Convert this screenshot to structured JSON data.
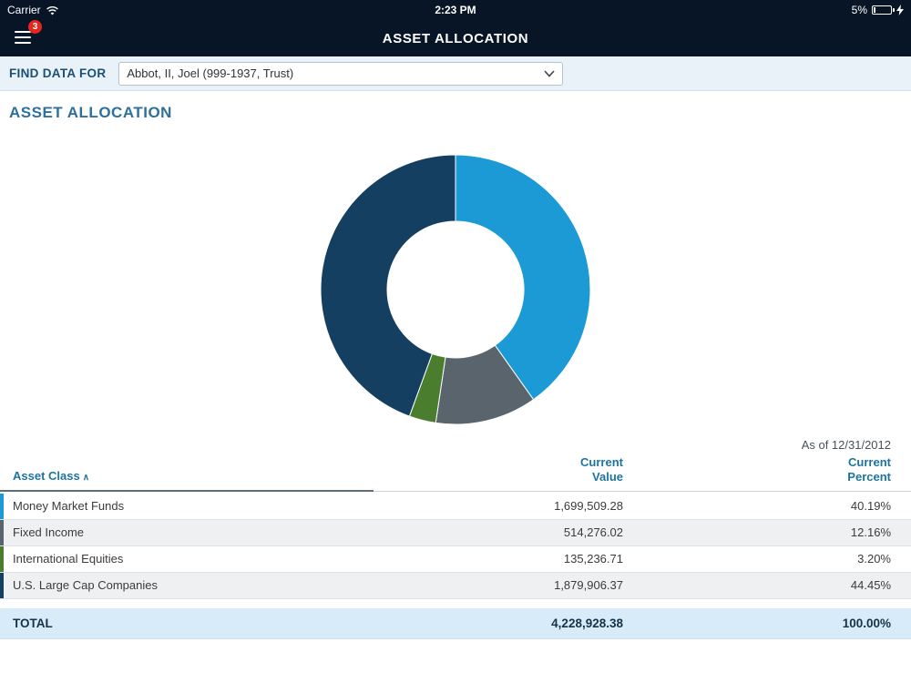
{
  "status_bar": {
    "carrier": "Carrier",
    "time": "2:23 PM",
    "battery_percent": "5%"
  },
  "nav": {
    "title": "ASSET ALLOCATION",
    "menu_badge": "3"
  },
  "find_data": {
    "label": "FIND DATA FOR",
    "selected": "Abbot, II, Joel (999-1937, Trust)"
  },
  "page": {
    "heading": "ASSET ALLOCATION",
    "as_of": "As of 12/31/2012"
  },
  "icons": {
    "sort_asc": "∧"
  },
  "chart_data": {
    "type": "pie",
    "donut": true,
    "title": "Asset Allocation",
    "start_angle_deg": 0,
    "slices": [
      {
        "label": "Money Market Funds",
        "value": 40.19,
        "color": "#1b9ad6"
      },
      {
        "label": "Fixed Income",
        "value": 12.16,
        "color": "#5a646c"
      },
      {
        "label": "International Equities",
        "value": 3.2,
        "color": "#4b7d2e"
      },
      {
        "label": "U.S. Large Cap Companies",
        "value": 44.45,
        "color": "#153f60"
      }
    ]
  },
  "table": {
    "headers": {
      "asset_class": "Asset Class",
      "current_value": [
        "Current",
        "Value"
      ],
      "current_percent": [
        "Current",
        "Percent"
      ]
    },
    "rows": [
      {
        "asset_class": "Money Market Funds",
        "value": "1,699,509.28",
        "percent": "40.19%",
        "color": "#1b9ad6"
      },
      {
        "asset_class": "Fixed Income",
        "value": "514,276.02",
        "percent": "12.16%",
        "color": "#5a646c"
      },
      {
        "asset_class": "International Equities",
        "value": "135,236.71",
        "percent": "3.20%",
        "color": "#4b7d2e"
      },
      {
        "asset_class": "U.S. Large Cap Companies",
        "value": "1,879,906.37",
        "percent": "44.45%",
        "color": "#153f60"
      }
    ],
    "total": {
      "label": "TOTAL",
      "value": "4,228,928.38",
      "percent": "100.00%"
    }
  }
}
